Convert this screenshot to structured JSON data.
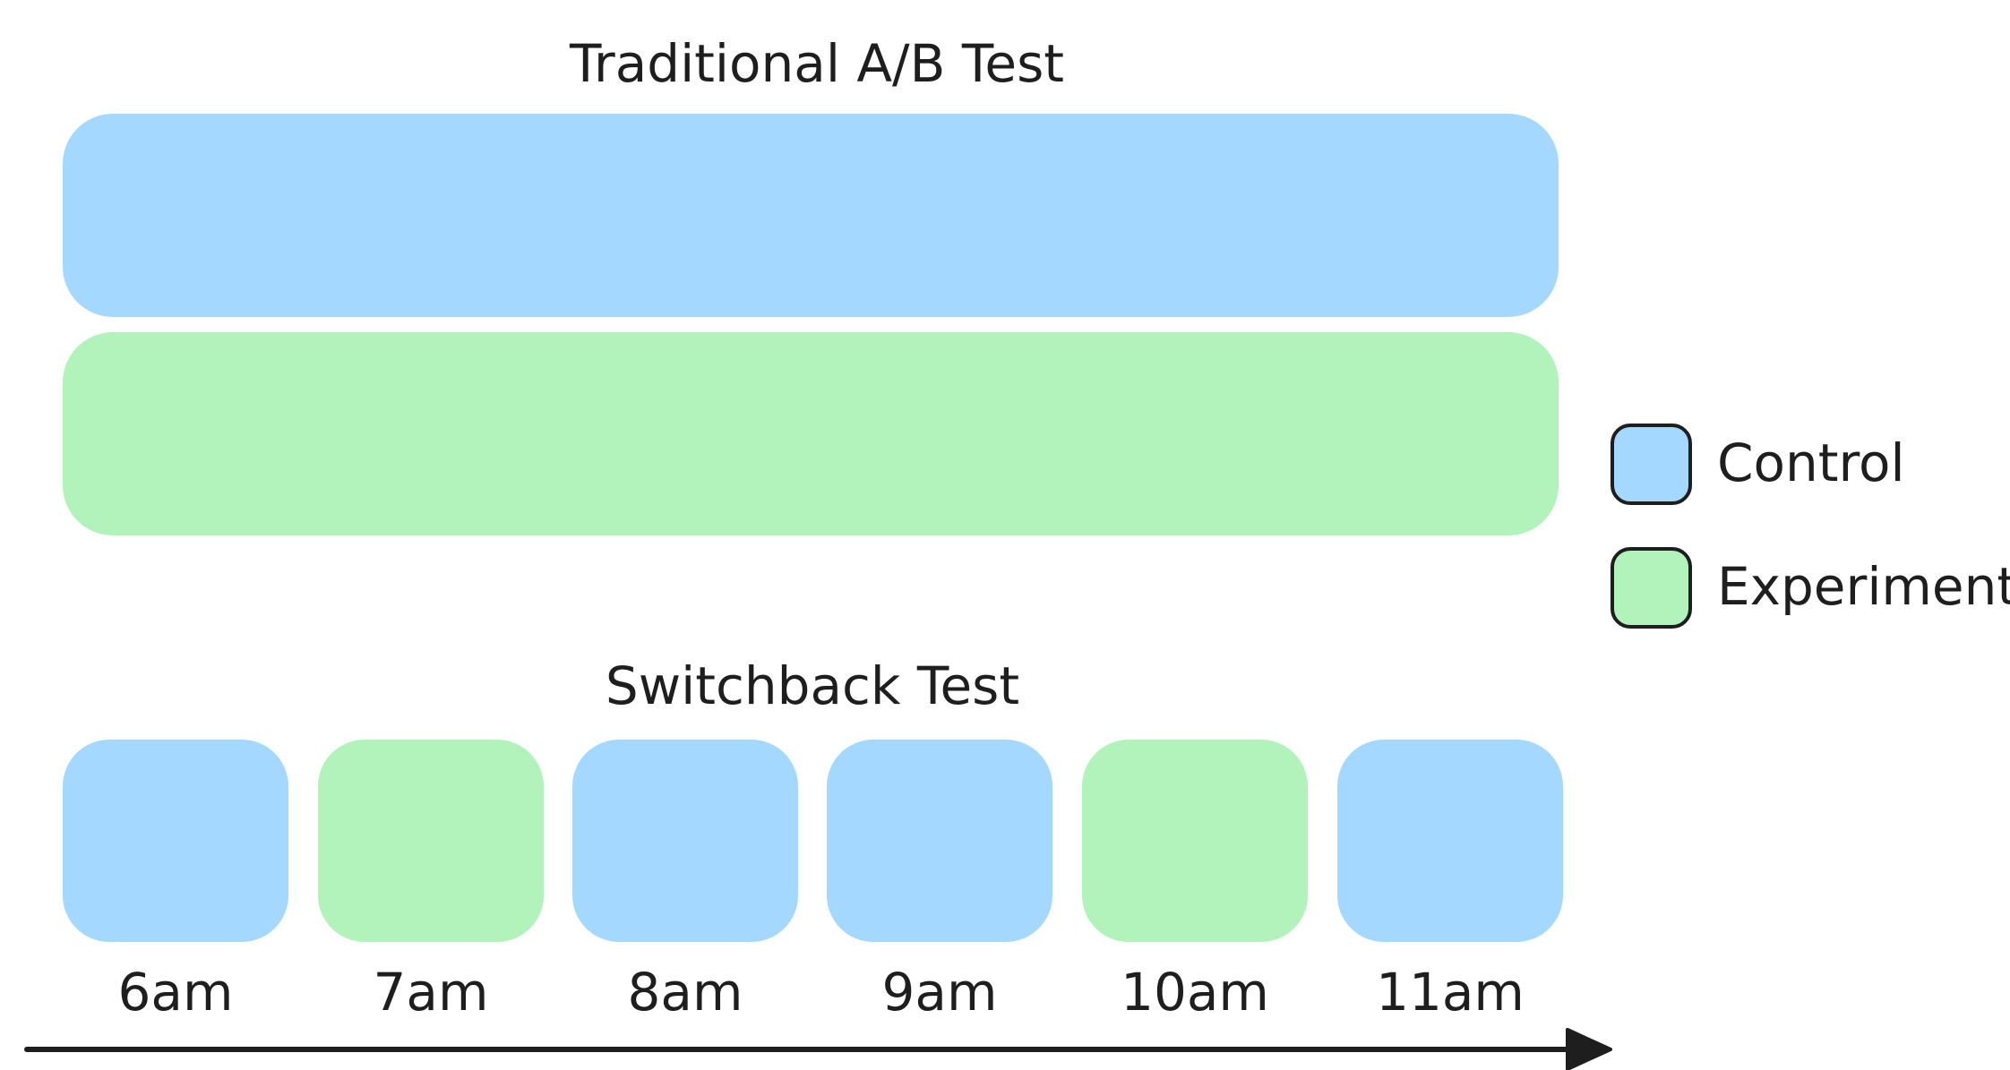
{
  "colors": {
    "control": "#a5d8ff",
    "experiment": "#b2f2bb",
    "stroke": "#1e1e1e"
  },
  "traditional": {
    "title": "Traditional A/B Test",
    "rows": [
      {
        "group": "control"
      },
      {
        "group": "experiment"
      }
    ]
  },
  "switchback": {
    "title": "Switchback Test",
    "slots": [
      {
        "time": "6am",
        "group": "control"
      },
      {
        "time": "7am",
        "group": "experiment"
      },
      {
        "time": "8am",
        "group": "control"
      },
      {
        "time": "9am",
        "group": "control"
      },
      {
        "time": "10am",
        "group": "experiment"
      },
      {
        "time": "11am",
        "group": "control"
      }
    ]
  },
  "legend": {
    "items": [
      {
        "label": "Control",
        "group": "control"
      },
      {
        "label": "Experiment",
        "group": "experiment"
      }
    ]
  }
}
